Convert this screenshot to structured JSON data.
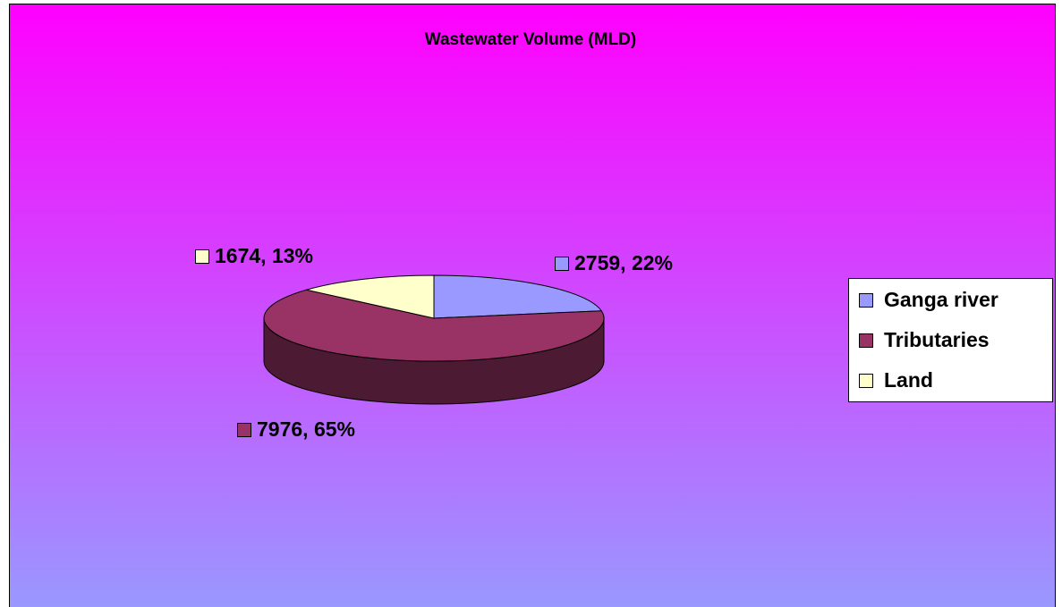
{
  "chart_data": {
    "type": "pie3d",
    "title": "Wastewater Volume (MLD)",
    "categories": [
      "Ganga river",
      "Tributaries",
      "Land"
    ],
    "values": [
      2759,
      7976,
      1674
    ],
    "value_labels": [
      "2759, 22%",
      "7976, 65%",
      "1674, 13%"
    ],
    "colors": [
      "#9999ff",
      "#993366",
      "#ffffcc"
    ],
    "legend": "right"
  }
}
